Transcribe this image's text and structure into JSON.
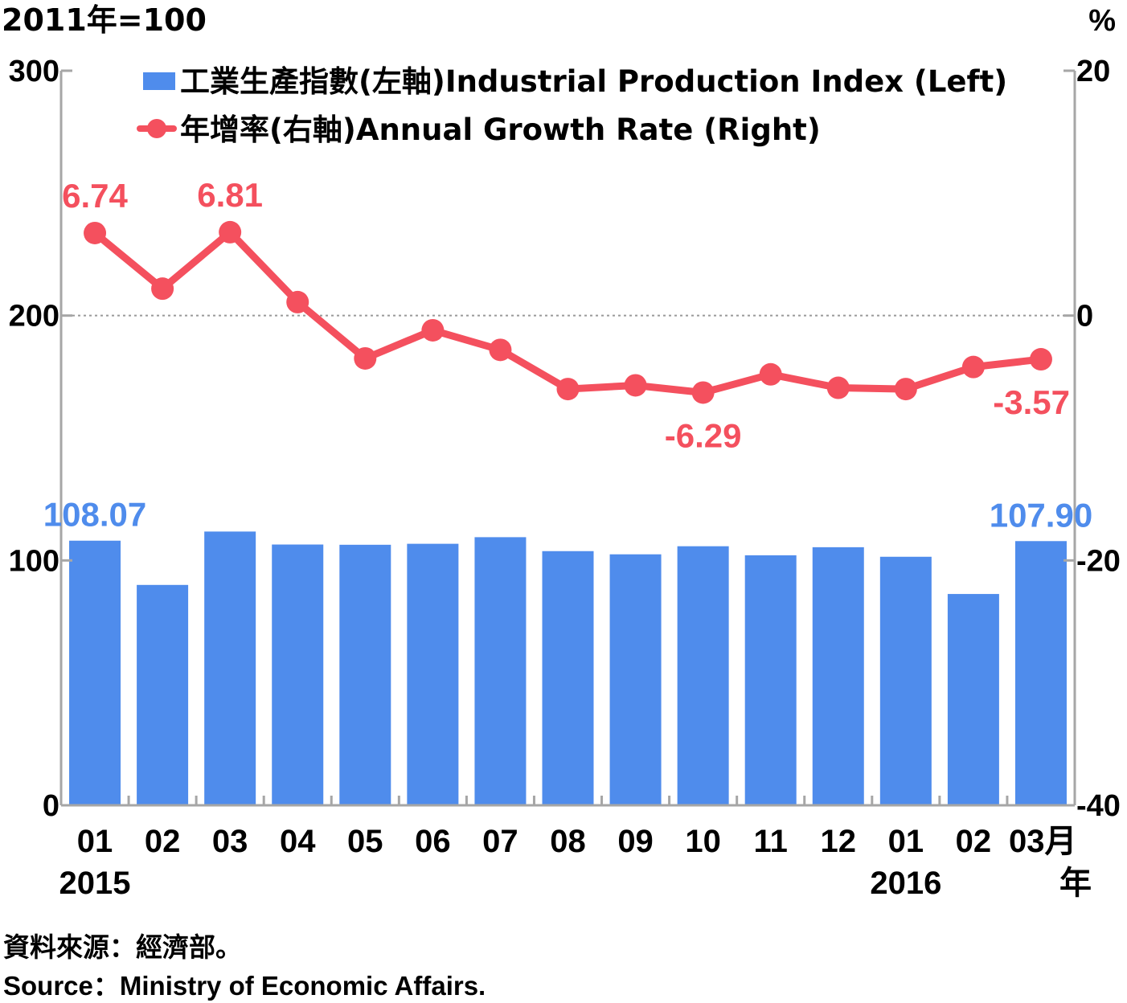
{
  "chart_data": {
    "type": "bar+line",
    "left_unit": "2011年=100",
    "right_unit": "%",
    "x_tick_labels": [
      "01",
      "02",
      "03",
      "04",
      "05",
      "06",
      "07",
      "08",
      "09",
      "10",
      "11",
      "12",
      "01",
      "02",
      "03月"
    ],
    "x_year_labels": [
      {
        "label": "2015",
        "index": 0
      },
      {
        "label": "2016",
        "index": 12
      }
    ],
    "x_axis_suffix": "年",
    "left_axis": {
      "ylim": [
        0,
        300
      ],
      "ticks": [
        "0",
        "100",
        "200",
        "300"
      ]
    },
    "right_axis": {
      "ylim": [
        -40,
        20
      ],
      "ticks": [
        "-40",
        "-20",
        "0",
        "20"
      ]
    },
    "zero_reference_line": {
      "axis": "right",
      "value": 0,
      "style": "dotted"
    },
    "series": [
      {
        "name": "工業生產指數(左軸)Industrial Production Index (Left)",
        "type": "bar",
        "axis": "left",
        "color": "#4f8cec",
        "values": [
          108.07,
          90.0,
          111.8,
          106.5,
          106.4,
          106.8,
          109.5,
          103.8,
          102.5,
          105.8,
          102.1,
          105.4,
          101.5,
          86.3,
          107.9
        ],
        "data_labels": [
          {
            "index": 0,
            "text": "108.07"
          },
          {
            "index": 14,
            "text": "107.90"
          }
        ]
      },
      {
        "name": "年增率(右軸)Annual Growth Rate (Right)",
        "type": "line",
        "axis": "right",
        "color": "#f4505e",
        "values": [
          6.74,
          2.2,
          6.81,
          1.1,
          -3.5,
          -1.2,
          -2.8,
          -6.0,
          -5.7,
          -6.29,
          -4.8,
          -5.9,
          -6.0,
          -4.2,
          -3.57
        ],
        "data_labels": [
          {
            "index": 0,
            "text": "6.74"
          },
          {
            "index": 2,
            "text": "6.81"
          },
          {
            "index": 9,
            "text": "-6.29"
          },
          {
            "index": 14,
            "text": "-3.57"
          }
        ]
      }
    ],
    "legend": "top-center"
  },
  "source": {
    "zh": "資料來源：經濟部。",
    "en": "Source：Ministry of Economic Affairs."
  }
}
